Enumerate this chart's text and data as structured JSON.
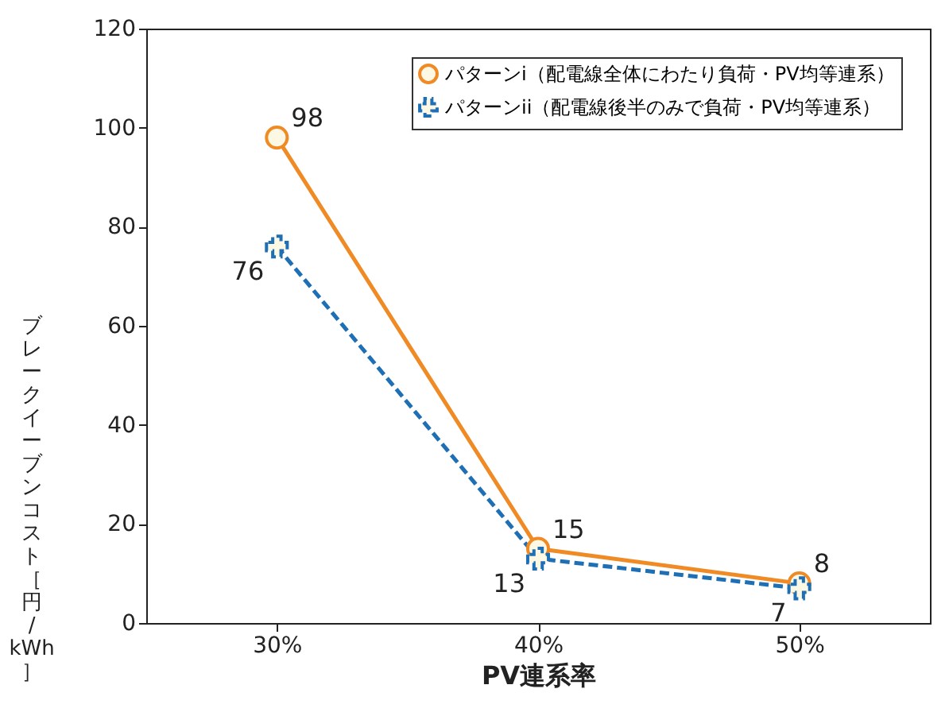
{
  "chart_data": {
    "type": "line",
    "xlabel": "PV連系率",
    "ylabel": "ブレークイーブンコスト［円/kWh］",
    "categories": [
      "30%",
      "40%",
      "50%"
    ],
    "ylim": [
      0,
      120
    ],
    "yticks": [
      0,
      20,
      40,
      60,
      80,
      100,
      120
    ],
    "legend": "top right",
    "data_labels": true,
    "grid": false,
    "series": [
      {
        "name": "パターンi（配電線全体にわたり負荷・PV均等連系）",
        "color": "#f08a24",
        "marker": "circle",
        "line_style": "solid",
        "values": [
          98,
          15,
          8
        ]
      },
      {
        "name": "パターンii（配電線後半のみで負荷・PV均等連系）",
        "color": "#1f6fb5",
        "marker": "cross",
        "line_style": "dashed",
        "values": [
          76,
          13,
          7
        ]
      }
    ]
  }
}
